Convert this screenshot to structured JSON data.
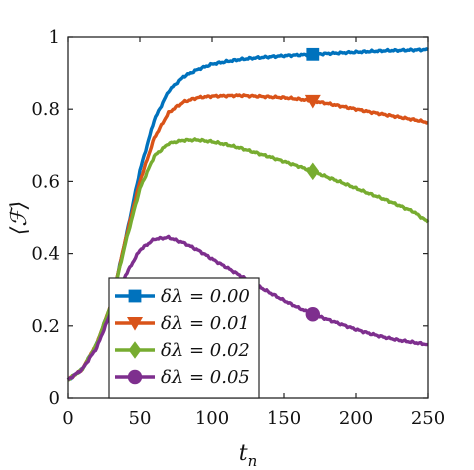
{
  "chart_data": {
    "type": "line",
    "title": "",
    "xlabel": "t_n",
    "ylabel": "⟨ℱ⟩",
    "xlim": [
      0,
      250
    ],
    "ylim": [
      0,
      1
    ],
    "xticks": [
      "0",
      "50",
      "100",
      "150",
      "200",
      "250"
    ],
    "yticks": [
      "0",
      "0.2",
      "0.4",
      "0.6",
      "0.8",
      "1"
    ],
    "grid": false,
    "legend_position": "bottom-left",
    "series": [
      {
        "name": "δλ = 0.00",
        "color": "#0072bd",
        "marker": "square",
        "marker_at": [
          170,
          0.952
        ],
        "x": [
          0,
          10,
          20,
          30,
          40,
          50,
          60,
          70,
          80,
          90,
          100,
          110,
          120,
          130,
          140,
          150,
          160,
          170,
          180,
          190,
          200,
          210,
          220,
          230,
          240,
          250
        ],
        "y": [
          0.05,
          0.08,
          0.15,
          0.26,
          0.44,
          0.63,
          0.77,
          0.85,
          0.89,
          0.91,
          0.925,
          0.932,
          0.938,
          0.942,
          0.945,
          0.948,
          0.95,
          0.952,
          0.954,
          0.956,
          0.958,
          0.96,
          0.962,
          0.963,
          0.964,
          0.965
        ]
      },
      {
        "name": "δλ = 0.01",
        "color": "#d95319",
        "marker": "triangle-down",
        "marker_at": [
          170,
          0.823
        ],
        "x": [
          0,
          10,
          20,
          30,
          40,
          50,
          60,
          70,
          80,
          90,
          100,
          110,
          120,
          130,
          140,
          150,
          160,
          170,
          180,
          190,
          200,
          210,
          220,
          230,
          240,
          250
        ],
        "y": [
          0.05,
          0.08,
          0.15,
          0.26,
          0.44,
          0.6,
          0.72,
          0.79,
          0.82,
          0.832,
          0.836,
          0.837,
          0.838,
          0.836,
          0.834,
          0.832,
          0.828,
          0.823,
          0.816,
          0.808,
          0.8,
          0.792,
          0.785,
          0.778,
          0.771,
          0.763
        ]
      },
      {
        "name": "δλ = 0.02",
        "color": "#77ac30",
        "marker": "diamond",
        "marker_at": [
          170,
          0.628
        ],
        "x": [
          0,
          10,
          20,
          30,
          40,
          50,
          60,
          70,
          80,
          90,
          100,
          110,
          120,
          130,
          140,
          150,
          160,
          170,
          180,
          190,
          200,
          210,
          220,
          230,
          240,
          250
        ],
        "y": [
          0.05,
          0.08,
          0.15,
          0.26,
          0.43,
          0.58,
          0.67,
          0.705,
          0.714,
          0.715,
          0.71,
          0.702,
          0.692,
          0.68,
          0.668,
          0.655,
          0.642,
          0.628,
          0.612,
          0.597,
          0.581,
          0.565,
          0.55,
          0.533,
          0.516,
          0.487
        ]
      },
      {
        "name": "δλ = 0.05",
        "color": "#7e2f8e",
        "marker": "circle",
        "marker_at": [
          170,
          0.232
        ],
        "x": [
          0,
          10,
          20,
          30,
          40,
          50,
          60,
          70,
          80,
          90,
          100,
          110,
          120,
          130,
          140,
          150,
          160,
          170,
          180,
          190,
          200,
          210,
          220,
          230,
          240,
          250
        ],
        "y": [
          0.05,
          0.08,
          0.14,
          0.24,
          0.34,
          0.41,
          0.44,
          0.445,
          0.43,
          0.41,
          0.385,
          0.362,
          0.338,
          0.315,
          0.292,
          0.27,
          0.25,
          0.232,
          0.218,
          0.204,
          0.19,
          0.178,
          0.168,
          0.16,
          0.154,
          0.148
        ]
      }
    ]
  }
}
